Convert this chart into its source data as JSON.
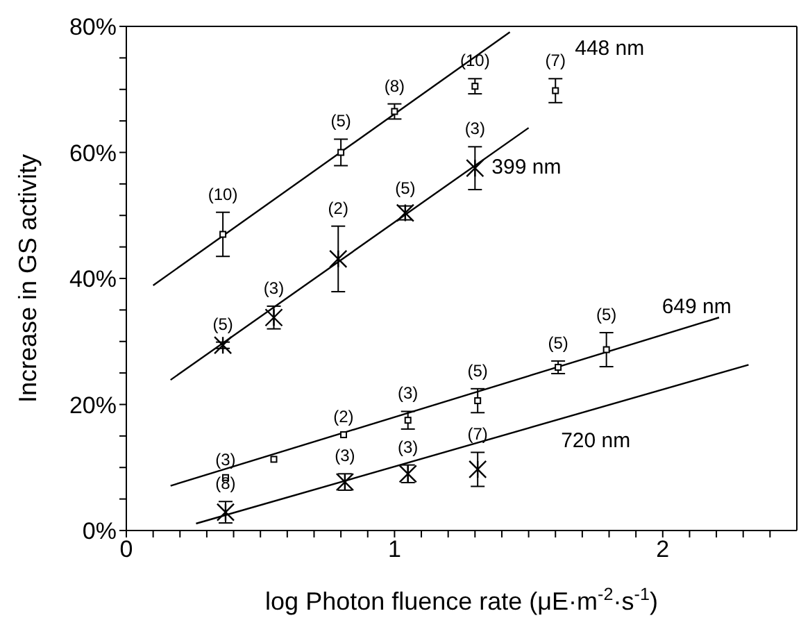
{
  "chart_data": {
    "type": "scatter",
    "xlabel": "log Photon fluence rate (μE·m$^{-2}$·s$^{-1}$)",
    "ylabel": "Increase in GS activity",
    "xlim": [
      0,
      2.5
    ],
    "ylim": [
      0,
      80
    ],
    "xticks": [
      0,
      {
        "value": 0.1,
        "label": null
      },
      {
        "value": 0.2,
        "label": null
      },
      {
        "value": 0.3,
        "label": null
      },
      {
        "value": 0.4,
        "label": null
      },
      {
        "value": 0.5,
        "label": null
      },
      {
        "value": 0.6,
        "label": null
      },
      {
        "value": 0.7,
        "label": null
      },
      {
        "value": 0.8,
        "label": null
      },
      {
        "value": 0.9,
        "label": null
      },
      1,
      {
        "value": 1.1,
        "label": null
      },
      {
        "value": 1.2,
        "label": null
      },
      {
        "value": 1.3,
        "label": null
      },
      {
        "value": 1.4,
        "label": null
      },
      {
        "value": 1.5,
        "label": null
      },
      {
        "value": 1.6,
        "label": null
      },
      {
        "value": 1.7,
        "label": null
      },
      {
        "value": 1.8,
        "label": null
      },
      {
        "value": 1.9,
        "label": null
      },
      2,
      {
        "value": 2.1,
        "label": null
      },
      {
        "value": 2.2,
        "label": null
      },
      {
        "value": 2.3,
        "label": null
      },
      {
        "value": 2.4,
        "label": null
      }
    ],
    "yticks": [
      {
        "value": 0,
        "label": "0%"
      },
      {
        "value": 5,
        "label": null
      },
      {
        "value": 10,
        "label": null
      },
      {
        "value": 15,
        "label": null
      },
      {
        "value": 20,
        "label": "20%"
      },
      {
        "value": 25,
        "label": null
      },
      {
        "value": 30,
        "label": null
      },
      {
        "value": 35,
        "label": null
      },
      {
        "value": 40,
        "label": "40%"
      },
      {
        "value": 45,
        "label": null
      },
      {
        "value": 50,
        "label": null
      },
      {
        "value": 55,
        "label": null
      },
      {
        "value": 60,
        "label": "60%"
      },
      {
        "value": 65,
        "label": null
      },
      {
        "value": 70,
        "label": null
      },
      {
        "value": 75,
        "label": null
      },
      {
        "value": 80,
        "label": "80%"
      }
    ],
    "grid": false,
    "legend": false,
    "series": [
      {
        "name": "448 nm",
        "marker": "square",
        "color": "#000000",
        "x": [
          0.36,
          0.8,
          1.0,
          1.3,
          1.6
        ],
        "values": [
          47,
          60,
          66.5,
          70.5,
          69.8
        ],
        "errors": [
          3.5,
          2.1,
          1.2,
          1.2,
          1.9
        ]
      },
      {
        "name": "399 nm",
        "marker": "cross",
        "color": "#000000",
        "x": [
          0.36,
          0.55,
          0.79,
          1.04,
          1.3
        ],
        "values": [
          29.4,
          33.8,
          43.1,
          50.4,
          57.5
        ],
        "errors": [
          0.5,
          1.8,
          5.2,
          1.1,
          3.4
        ]
      },
      {
        "name": "649 nm",
        "marker": "square",
        "color": "#000000",
        "x": [
          0.37,
          0.55,
          0.81,
          1.05,
          1.31,
          1.61,
          1.79
        ],
        "values": [
          8.4,
          11.3,
          15.2,
          17.5,
          20.6,
          25.9,
          28.7
        ],
        "errors": [
          null,
          null,
          null,
          1.4,
          1.9,
          1,
          2.7
        ]
      },
      {
        "name": "720 nm",
        "marker": "cross",
        "color": "#000000",
        "x": [
          0.37,
          0.815,
          1.05,
          1.31
        ],
        "values": [
          2.9,
          7.7,
          9.0,
          9.7
        ],
        "errors": [
          1.7,
          1.3,
          1.4,
          2.7
        ]
      },
      {
        "type": "line",
        "color": "#000000",
        "x": [
          0.1,
          1.43
        ],
        "values": [
          38.9,
          79.1
        ]
      },
      {
        "type": "line",
        "color": "#000000",
        "x": [
          0.165,
          1.5
        ],
        "values": [
          23.9,
          63.9
        ]
      },
      {
        "type": "line",
        "color": "#000000",
        "x": [
          0.165,
          2.21
        ],
        "values": [
          7.1,
          33.8
        ]
      },
      {
        "type": "line",
        "color": "#000000",
        "x": [
          0.26,
          2.32
        ],
        "values": [
          1.1,
          26.3
        ]
      }
    ],
    "annotations": [
      {
        "text": "(10)",
        "x": 0.36,
        "y": 47
      },
      {
        "text": "(5)",
        "x": 0.8,
        "y": 60
      },
      {
        "text": "(8)",
        "x": 1.0,
        "y": 66.5
      },
      {
        "text": "(10)",
        "x": 1.3,
        "y": 70.5
      },
      {
        "text": "(7)",
        "x": 1.6,
        "y": 69.8
      },
      {
        "text": "(5)",
        "x": 0.36,
        "y": 29.4
      },
      {
        "text": "(3)",
        "x": 0.55,
        "y": 33.8
      },
      {
        "text": "(2)",
        "x": 0.79,
        "y": 43.1
      },
      {
        "text": "(5)",
        "x": 1.04,
        "y": 50.4
      },
      {
        "text": "(3)",
        "x": 1.3,
        "y": 57.5
      },
      {
        "text": "(3)",
        "x": 0.37,
        "y": 8.4
      },
      {
        "text": "(2)",
        "x": 0.81,
        "y": 15.2
      },
      {
        "text": "(3)",
        "x": 1.05,
        "y": 17.5
      },
      {
        "text": "(5)",
        "x": 1.31,
        "y": 20.6
      },
      {
        "text": "(5)",
        "x": 1.61,
        "y": 25.9
      },
      {
        "text": "(5)",
        "x": 1.79,
        "y": 28.7
      },
      {
        "text": "(8)",
        "x": 0.37,
        "y": 2.9
      },
      {
        "text": "(3)",
        "x": 0.815,
        "y": 7.7
      },
      {
        "text": "(3)",
        "x": 1.05,
        "y": 9.0
      },
      {
        "text": "(7)",
        "x": 1.31,
        "y": 9.7
      }
    ]
  }
}
